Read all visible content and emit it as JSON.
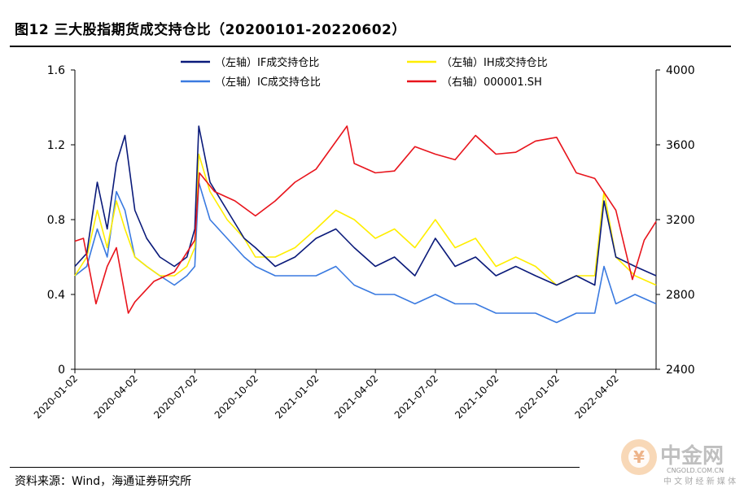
{
  "figure": {
    "title": "图12 三大股指期货成交持仓比（20200101-20220602）",
    "source": "资料来源：Wind，海通证券研究所"
  },
  "watermark": {
    "brand": "中金网",
    "url": "CNGOLD.COM.CN",
    "tagline": "中 文 财 经 新 媒 体"
  },
  "chart_data": {
    "type": "line",
    "title": "",
    "x_ticks": [
      "2020-01-02",
      "2020-04-02",
      "2020-07-02",
      "2020-10-02",
      "2021-01-02",
      "2021-04-02",
      "2021-07-02",
      "2021-10-02",
      "2022-01-02",
      "2022-04-02"
    ],
    "x_range": [
      "2020-01-02",
      "2022-06-02"
    ],
    "y_left": {
      "range": [
        0,
        1.6
      ],
      "ticks": [
        "0",
        "0.4",
        "0.8",
        "1.2",
        "1.6"
      ]
    },
    "y_right": {
      "range": [
        2400,
        4000
      ],
      "ticks": [
        "2400",
        "2800",
        "3200",
        "3600",
        "4000"
      ]
    },
    "legend_position": "top",
    "grid": false,
    "series": [
      {
        "name": "（左轴）IF成交持仓比",
        "axis": "left",
        "color": "#0a1a7a",
        "dates": [
          "2020-01-02",
          "2020-01-20",
          "2020-02-05",
          "2020-02-20",
          "2020-03-05",
          "2020-03-18",
          "2020-04-02",
          "2020-04-20",
          "2020-05-10",
          "2020-06-01",
          "2020-06-20",
          "2020-07-02",
          "2020-07-08",
          "2020-07-25",
          "2020-08-20",
          "2020-09-15",
          "2020-10-02",
          "2020-11-01",
          "2020-12-01",
          "2021-01-02",
          "2021-02-01",
          "2021-03-01",
          "2021-04-02",
          "2021-05-01",
          "2021-06-01",
          "2021-07-02",
          "2021-08-01",
          "2021-09-01",
          "2021-10-02",
          "2021-11-01",
          "2021-12-01",
          "2022-01-02",
          "2022-02-01",
          "2022-03-01",
          "2022-03-15",
          "2022-04-02",
          "2022-05-01",
          "2022-06-02"
        ],
        "values": [
          0.55,
          0.62,
          1.0,
          0.75,
          1.1,
          1.25,
          0.85,
          0.7,
          0.6,
          0.55,
          0.6,
          0.75,
          1.3,
          1.0,
          0.85,
          0.7,
          0.65,
          0.55,
          0.6,
          0.7,
          0.75,
          0.65,
          0.55,
          0.6,
          0.5,
          0.7,
          0.55,
          0.6,
          0.5,
          0.55,
          0.5,
          0.45,
          0.5,
          0.45,
          0.9,
          0.6,
          0.55,
          0.5
        ]
      },
      {
        "name": "（左轴）IH成交持仓比",
        "axis": "left",
        "color": "#ffee00",
        "dates": [
          "2020-01-02",
          "2020-01-20",
          "2020-02-05",
          "2020-02-20",
          "2020-03-05",
          "2020-03-18",
          "2020-04-02",
          "2020-04-20",
          "2020-05-10",
          "2020-06-01",
          "2020-06-20",
          "2020-07-02",
          "2020-07-08",
          "2020-07-25",
          "2020-08-20",
          "2020-09-15",
          "2020-10-02",
          "2020-11-01",
          "2020-12-01",
          "2021-01-02",
          "2021-02-01",
          "2021-03-01",
          "2021-04-02",
          "2021-05-01",
          "2021-06-01",
          "2021-07-02",
          "2021-08-01",
          "2021-09-01",
          "2021-10-02",
          "2021-11-01",
          "2021-12-01",
          "2022-01-02",
          "2022-02-01",
          "2022-03-01",
          "2022-03-15",
          "2022-04-02",
          "2022-05-01",
          "2022-06-02"
        ],
        "values": [
          0.5,
          0.6,
          0.85,
          0.65,
          0.9,
          0.75,
          0.6,
          0.55,
          0.5,
          0.5,
          0.55,
          0.65,
          1.15,
          0.95,
          0.8,
          0.7,
          0.6,
          0.6,
          0.65,
          0.75,
          0.85,
          0.8,
          0.7,
          0.75,
          0.65,
          0.8,
          0.65,
          0.7,
          0.55,
          0.6,
          0.55,
          0.45,
          0.5,
          0.5,
          0.95,
          0.6,
          0.5,
          0.45
        ]
      },
      {
        "name": "（左轴）IC成交持仓比",
        "axis": "left",
        "color": "#3a7ae0",
        "dates": [
          "2020-01-02",
          "2020-01-20",
          "2020-02-05",
          "2020-02-20",
          "2020-03-05",
          "2020-03-18",
          "2020-04-02",
          "2020-04-20",
          "2020-05-10",
          "2020-06-01",
          "2020-06-20",
          "2020-07-02",
          "2020-07-08",
          "2020-07-25",
          "2020-08-20",
          "2020-09-15",
          "2020-10-02",
          "2020-11-01",
          "2020-12-01",
          "2021-01-02",
          "2021-02-01",
          "2021-03-01",
          "2021-04-02",
          "2021-05-01",
          "2021-06-01",
          "2021-07-02",
          "2021-08-01",
          "2021-09-01",
          "2021-10-02",
          "2021-11-01",
          "2021-12-01",
          "2022-01-02",
          "2022-02-01",
          "2022-03-01",
          "2022-03-15",
          "2022-04-02",
          "2022-05-01",
          "2022-06-02"
        ],
        "values": [
          0.5,
          0.55,
          0.75,
          0.6,
          0.95,
          0.85,
          0.6,
          0.55,
          0.5,
          0.45,
          0.5,
          0.55,
          1.0,
          0.8,
          0.7,
          0.6,
          0.55,
          0.5,
          0.5,
          0.5,
          0.55,
          0.45,
          0.4,
          0.4,
          0.35,
          0.4,
          0.35,
          0.35,
          0.3,
          0.3,
          0.3,
          0.25,
          0.3,
          0.3,
          0.55,
          0.35,
          0.4,
          0.35
        ]
      },
      {
        "name": "（右轴）000001.SH",
        "axis": "right",
        "color": "#e8141c",
        "dates": [
          "2020-01-02",
          "2020-01-15",
          "2020-02-03",
          "2020-02-20",
          "2020-03-05",
          "2020-03-23",
          "2020-04-02",
          "2020-05-01",
          "2020-06-01",
          "2020-07-02",
          "2020-07-09",
          "2020-08-01",
          "2020-09-01",
          "2020-10-02",
          "2020-11-01",
          "2020-12-01",
          "2021-01-02",
          "2021-02-18",
          "2021-03-01",
          "2021-04-02",
          "2021-05-01",
          "2021-06-01",
          "2021-07-02",
          "2021-08-01",
          "2021-09-01",
          "2021-10-02",
          "2021-11-01",
          "2021-12-01",
          "2022-01-02",
          "2022-02-01",
          "2022-03-01",
          "2022-04-02",
          "2022-04-27",
          "2022-05-15",
          "2022-06-02"
        ],
        "values": [
          3085,
          3100,
          2750,
          2950,
          3050,
          2700,
          2760,
          2870,
          2920,
          3090,
          3450,
          3350,
          3300,
          3220,
          3300,
          3400,
          3470,
          3700,
          3500,
          3450,
          3460,
          3590,
          3550,
          3520,
          3650,
          3550,
          3560,
          3620,
          3640,
          3450,
          3420,
          3250,
          2880,
          3090,
          3190
        ]
      }
    ]
  }
}
